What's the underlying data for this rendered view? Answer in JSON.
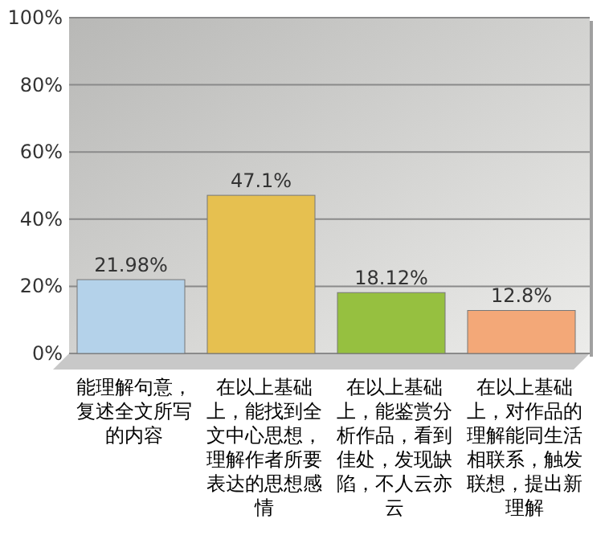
{
  "chart_data": {
    "type": "bar",
    "categories": [
      "能理解句意，复述全文所写的内容",
      "在以上基础上，能找到全文中心思想，理解作者所要表达的思想感情",
      "在以上基础上，能鉴赏分析作品，看到佳处，发现缺陷，不人云亦云",
      "在以上基础上，对作品的理解能同生活相联系，触发联想，提出新理解"
    ],
    "values": [
      21.98,
      47.1,
      18.12,
      12.8
    ],
    "colors": [
      "#b4d2ea",
      "#e6c050",
      "#96c040",
      "#f3a878"
    ],
    "value_labels": [
      "21.98%",
      "47.1%",
      "18.12%",
      "12.8%"
    ],
    "ylim": [
      0,
      100
    ],
    "yticks": [
      {
        "value": 0,
        "label": "0%"
      },
      {
        "value": 20,
        "label": "20%"
      },
      {
        "value": 40,
        "label": "40%"
      },
      {
        "value": 60,
        "label": "60%"
      },
      {
        "value": 80,
        "label": "80%"
      },
      {
        "value": 100,
        "label": "100%"
      }
    ],
    "grid": "y"
  }
}
